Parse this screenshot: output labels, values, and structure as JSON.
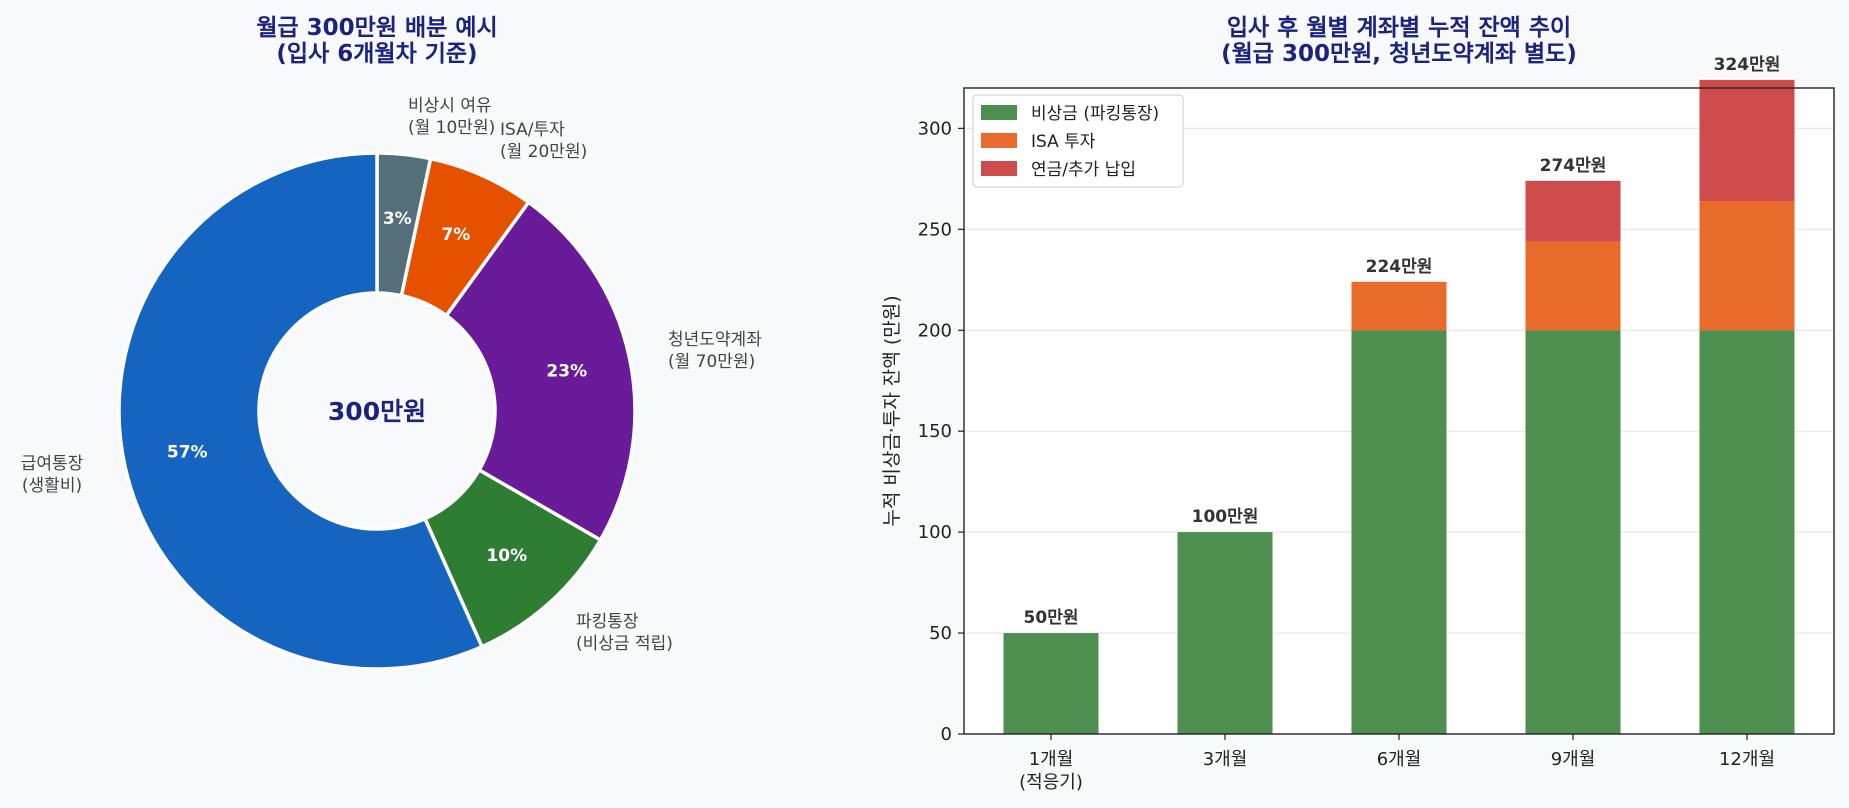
{
  "chart_data": [
    {
      "type": "pie",
      "style": "donut",
      "title": [
        "월급 300만원 배분 예시",
        "(입사 6개월차 기준)"
      ],
      "center_label": "300만원",
      "start_angle": "top",
      "direction": "clockwise",
      "slices": [
        {
          "label": [
            "비상시 여유",
            "(월 10만원)"
          ],
          "pct_label": "3%",
          "value": 10,
          "color": "#546e7a"
        },
        {
          "label": [
            "ISA/투자",
            "(월 20만원)"
          ],
          "pct_label": "7%",
          "value": 20,
          "color": "#e65100"
        },
        {
          "label": [
            "청년도약계좌",
            "(월 70만원)"
          ],
          "pct_label": "23%",
          "value": 70,
          "color": "#6a1b9a"
        },
        {
          "label": [
            "파킹통장",
            "(비상금 적립)"
          ],
          "pct_label": "10%",
          "value": 30,
          "color": "#2e7d32"
        },
        {
          "label": [
            "급여통장",
            "(생활비)"
          ],
          "pct_label": "57%",
          "value": 170,
          "color": "#1565c0"
        }
      ]
    },
    {
      "type": "bar",
      "stacked": true,
      "title": [
        "입사 후 월별 계좌별 누적 잔액 추이",
        "(월급 300만원, 청년도약계좌 별도)"
      ],
      "xlabel": "",
      "ylabel": "누적 비상금·투자 잔액 (만원)",
      "ylim": [
        0,
        320
      ],
      "yticks": [
        0,
        50,
        100,
        150,
        200,
        250,
        300
      ],
      "grid": "horizontal",
      "legend_position": "top-left",
      "categories": [
        [
          "1개월",
          "(적응기)"
        ],
        [
          "3개월"
        ],
        [
          "6개월"
        ],
        [
          "9개월"
        ],
        [
          "12개월"
        ]
      ],
      "series": [
        {
          "name": "비상금 (파킹통장)",
          "color": "#4e8f4f",
          "values": [
            50,
            100,
            200,
            200,
            200
          ]
        },
        {
          "name": "ISA 투자",
          "color": "#e96b2b",
          "values": [
            0,
            0,
            24,
            44,
            64
          ]
        },
        {
          "name": "연금/추가 납입",
          "color": "#cf4a4b",
          "values": [
            0,
            0,
            0,
            30,
            60
          ]
        }
      ],
      "totals": [
        "50만원",
        "100만원",
        "224만원",
        "274만원",
        "324만원"
      ]
    }
  ]
}
